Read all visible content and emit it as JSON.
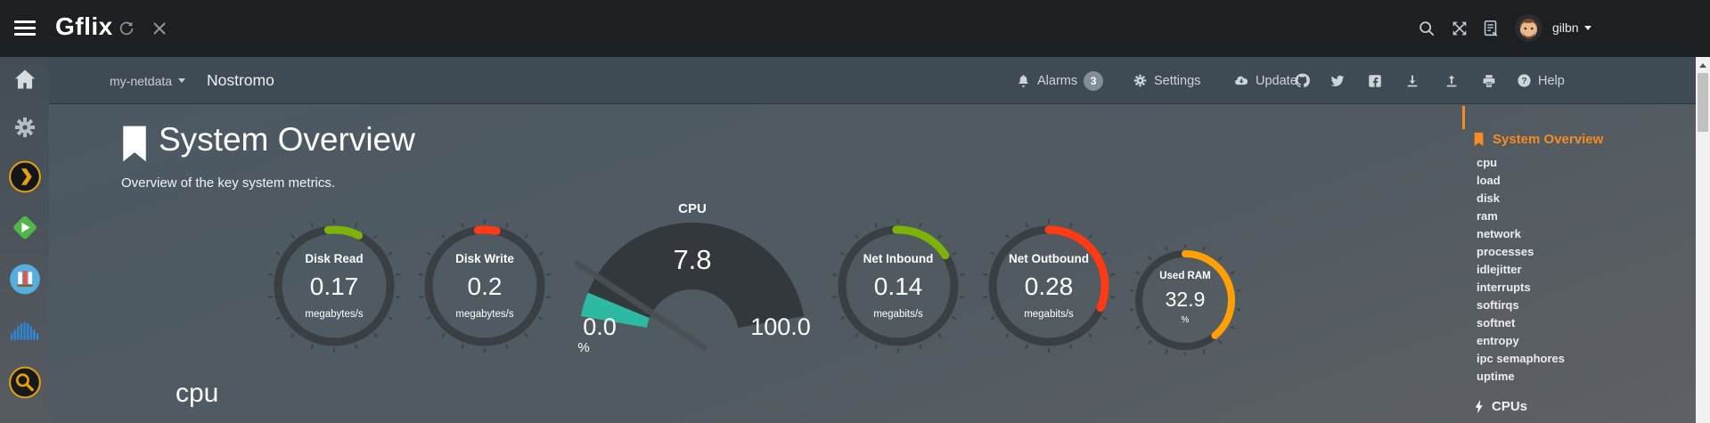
{
  "topbar": {
    "brand": "Gflix",
    "username": "gilbn"
  },
  "navbar": {
    "server": "my-netdata",
    "hostname": "Nostromo",
    "alarms": "Alarms",
    "alarms_count": "3",
    "settings": "Settings",
    "update": "Update",
    "help": "Help"
  },
  "page": {
    "title": "System Overview",
    "subtitle": "Overview of the key system metrics.",
    "next_section": "cpu"
  },
  "chart_data": [
    {
      "type": "gauge",
      "variant": "ring",
      "title": "Disk Read",
      "value": 0.17,
      "units": "megabytes/s",
      "color": "#7db309",
      "arc_start": -6,
      "arc_end": 26
    },
    {
      "type": "gauge",
      "variant": "ring",
      "title": "Disk Write",
      "value": 0.2,
      "units": "megabytes/s",
      "color": "#fe3b14",
      "arc_start": -7,
      "arc_end": 12
    },
    {
      "type": "gauge",
      "variant": "fan",
      "title": "CPU",
      "value": 7.8,
      "units": "%",
      "min": 0,
      "max": 100,
      "min_label": "0.0",
      "max_label": "100.0",
      "color": "#2ebaa2"
    },
    {
      "type": "gauge",
      "variant": "ring",
      "title": "Net Inbound",
      "value": 0.14,
      "units": "megabits/s",
      "color": "#7db309",
      "arc_start": -2,
      "arc_end": 57
    },
    {
      "type": "gauge",
      "variant": "ring",
      "title": "Net Outbound",
      "value": 0.28,
      "units": "megabits/s",
      "color": "#fe3b14",
      "arc_start": 0,
      "arc_end": 113
    },
    {
      "type": "gauge",
      "variant": "ring",
      "title": "Used RAM",
      "value": 32.9,
      "units": "%",
      "color": "#ffa105",
      "arc_start": 0,
      "arc_end": 140
    }
  ],
  "rightnav": {
    "active": "System Overview",
    "items": [
      "cpu",
      "load",
      "disk",
      "ram",
      "network",
      "processes",
      "idlejitter",
      "interrupts",
      "softirqs",
      "softnet",
      "entropy",
      "ipc semaphores",
      "uptime"
    ],
    "cpus": "CPUs"
  },
  "colors": {
    "accent_orange": "#f78b20",
    "green": "#7db309",
    "red": "#fe3b14",
    "teal": "#2ebaa2",
    "orange": "#ffa105"
  }
}
